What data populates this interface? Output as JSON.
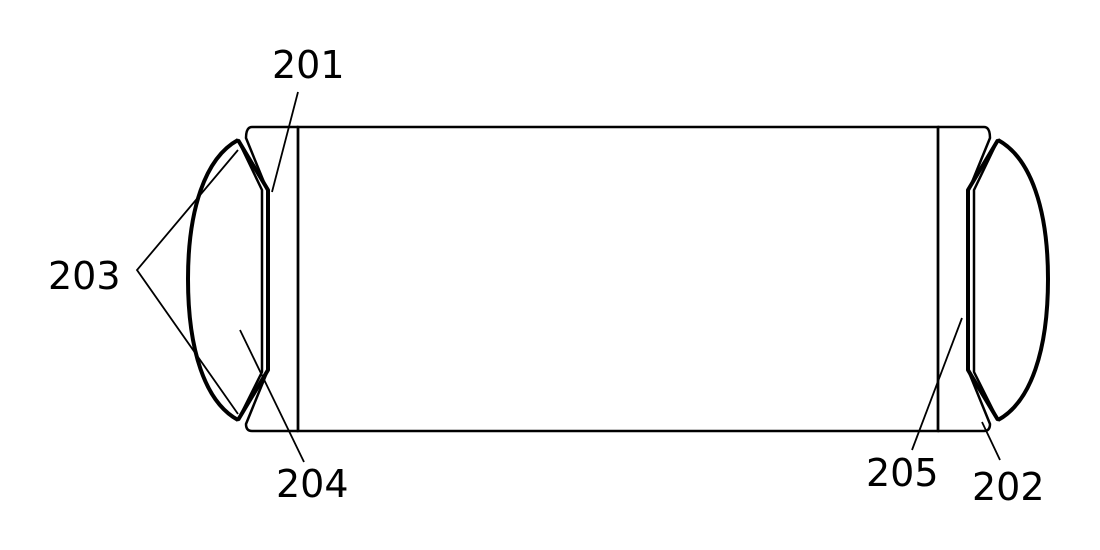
{
  "labels": {
    "l201": "201",
    "l202": "202",
    "l203": "203",
    "l204": "204",
    "l205": "205"
  },
  "colors": {
    "stroke": "#000000",
    "background": "#ffffff"
  }
}
